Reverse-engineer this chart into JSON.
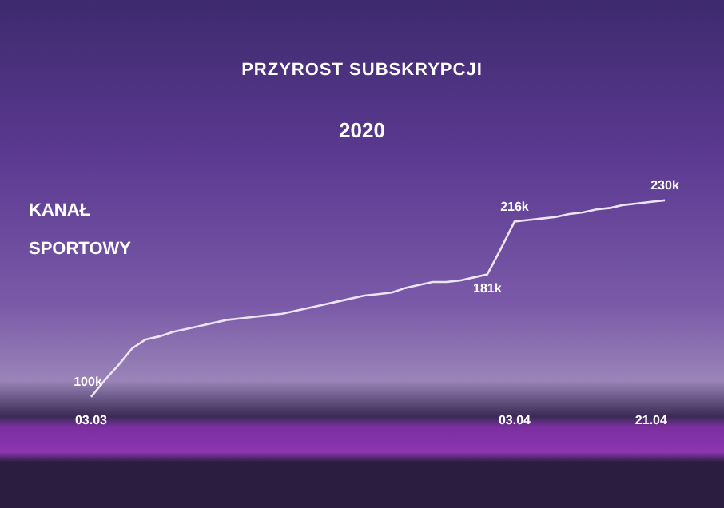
{
  "chart_data": {
    "type": "line",
    "title": "PRZYROST SUBSKRYPCJI",
    "subtitle": "2020",
    "annotations": [
      "KANAŁ SPORTOWY"
    ],
    "categories": [
      "03.03",
      null,
      null,
      null,
      null,
      null,
      null,
      null,
      null,
      null,
      null,
      null,
      null,
      null,
      null,
      null,
      null,
      null,
      null,
      null,
      null,
      null,
      null,
      null,
      null,
      null,
      null,
      null,
      null,
      null,
      null,
      "03.04",
      null,
      null,
      null,
      null,
      null,
      null,
      null,
      null,
      null,
      "21.04",
      null
    ],
    "series": [
      {
        "color": "#ece4f4",
        "values": [
          100,
          111,
          121,
          132,
          138,
          140,
          143,
          145,
          147,
          149,
          151,
          152,
          153,
          154,
          155,
          157,
          159,
          161,
          163,
          165,
          167,
          168,
          169,
          172,
          174,
          176,
          176,
          177,
          179,
          181,
          198,
          216,
          217,
          218,
          219,
          221,
          222,
          224,
          225,
          227,
          228,
          229,
          230
        ],
        "value_labels": [
          "100k",
          null,
          null,
          null,
          null,
          null,
          null,
          null,
          null,
          null,
          null,
          null,
          null,
          null,
          null,
          null,
          null,
          null,
          null,
          null,
          null,
          null,
          null,
          null,
          null,
          null,
          null,
          null,
          null,
          "181k",
          null,
          "216k",
          null,
          null,
          null,
          null,
          null,
          null,
          null,
          null,
          null,
          null,
          "230k"
        ]
      }
    ],
    "tick_labels": "x",
    "grid": false,
    "legend": false,
    "marker": "none",
    "line_style": "solid"
  }
}
